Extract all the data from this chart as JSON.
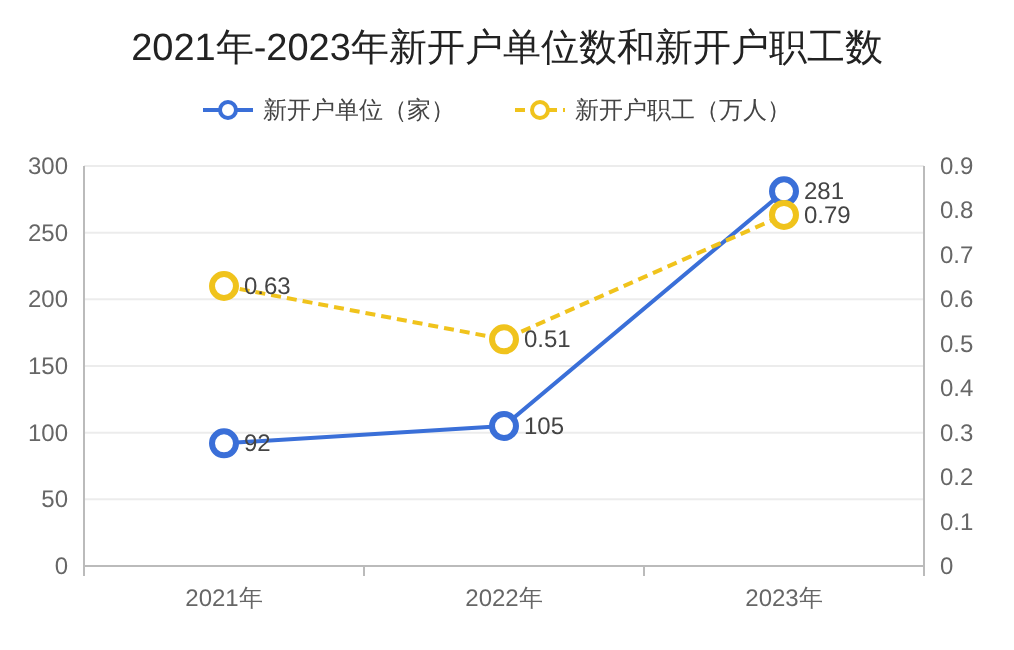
{
  "chart_data": {
    "type": "line",
    "title": "2021年-2023年新开户单位数和新开户职工数",
    "categories": [
      "2021年",
      "2022年",
      "2023年"
    ],
    "series": [
      {
        "name": "新开户单位（家）",
        "color": "#3a6fd8",
        "values": [
          92,
          105,
          281
        ],
        "line_style": "solid"
      },
      {
        "name": "新开户职工（万人）",
        "color": "#f0c31c",
        "values": [
          0.63,
          0.51,
          0.79
        ],
        "axis": "y2",
        "line_style": "dashed"
      }
    ],
    "ylim": [
      0,
      300
    ],
    "yticks": [
      0,
      50,
      100,
      150,
      200,
      250,
      300
    ],
    "y2lim": [
      0,
      0.9
    ],
    "y2ticks": [
      0,
      0.1,
      0.2,
      0.3,
      0.4,
      0.5,
      0.6,
      0.7,
      0.8,
      0.9
    ],
    "grid": "y",
    "legend": "top",
    "marker": "circle",
    "data_labels": true
  }
}
